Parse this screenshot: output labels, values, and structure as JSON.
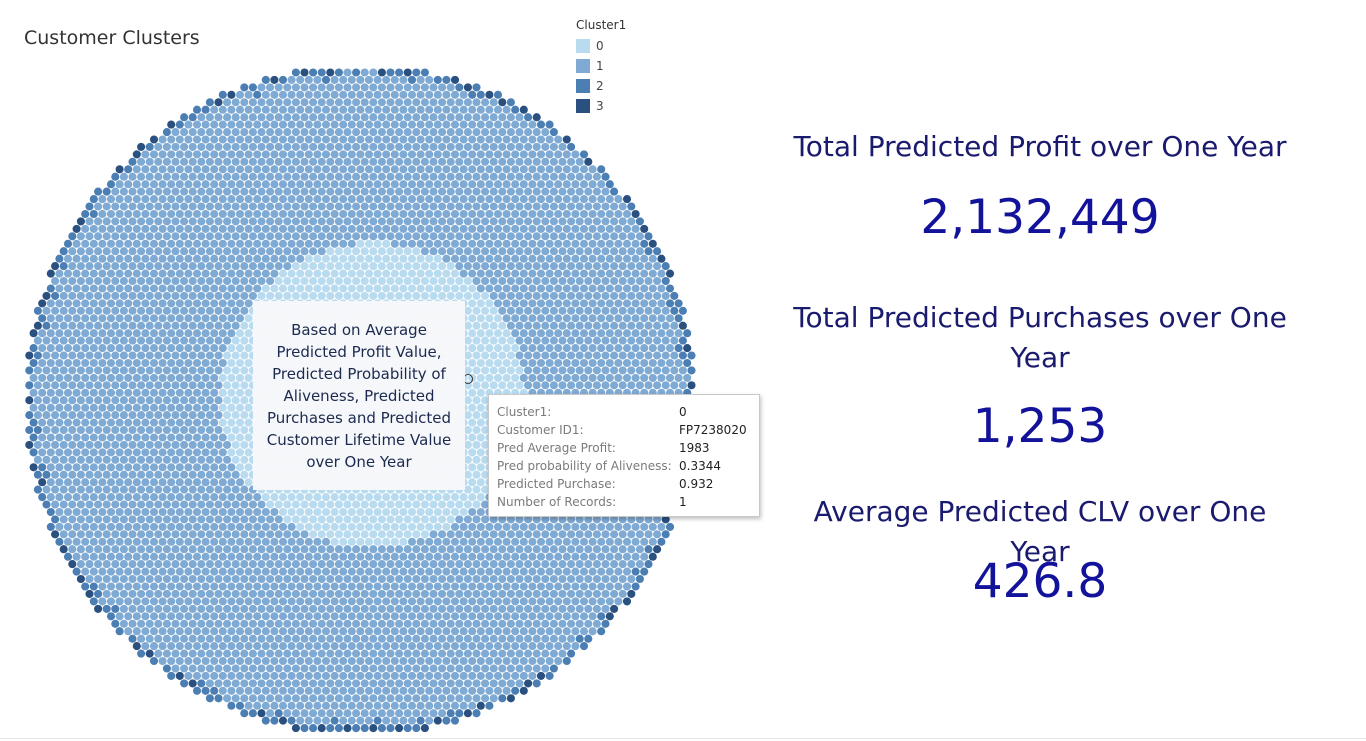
{
  "chart_data": {
    "type": "scatter",
    "title": "Customer Clusters",
    "legend": {
      "title": "Cluster1",
      "placement": "top-right",
      "items": [
        {
          "label": "0",
          "color": "#b9dbf0"
        },
        {
          "label": "1",
          "color": "#7faad4"
        },
        {
          "label": "2",
          "color": "#4b7eb3"
        },
        {
          "label": "3",
          "color": "#2a5080"
        }
      ]
    },
    "annotation": "Based on Average Predicted Profit Value, Predicted Probability of Aliveness, Predicted Purchases and Predicted Customer Lifetime Value over One Year",
    "tooltip": [
      {
        "key": "Cluster1:",
        "value": "0"
      },
      {
        "key": "Customer ID1:",
        "value": "FP7238020"
      },
      {
        "key": "Pred Average Profit:",
        "value": "1983"
      },
      {
        "key": "Pred probability of Aliveness:",
        "value": "0.3344"
      },
      {
        "key": "Predicted Purchase:",
        "value": "0.932"
      },
      {
        "key": "Number of Records:",
        "value": "1"
      }
    ]
  },
  "kpis": [
    {
      "label": "Total Predicted Profit over One Year",
      "value": "2,132,449"
    },
    {
      "label": "Total Predicted Purchases over One Year",
      "value": "1,253"
    },
    {
      "label": "Average Predicted CLV over One Year",
      "value": "426.8"
    }
  ]
}
